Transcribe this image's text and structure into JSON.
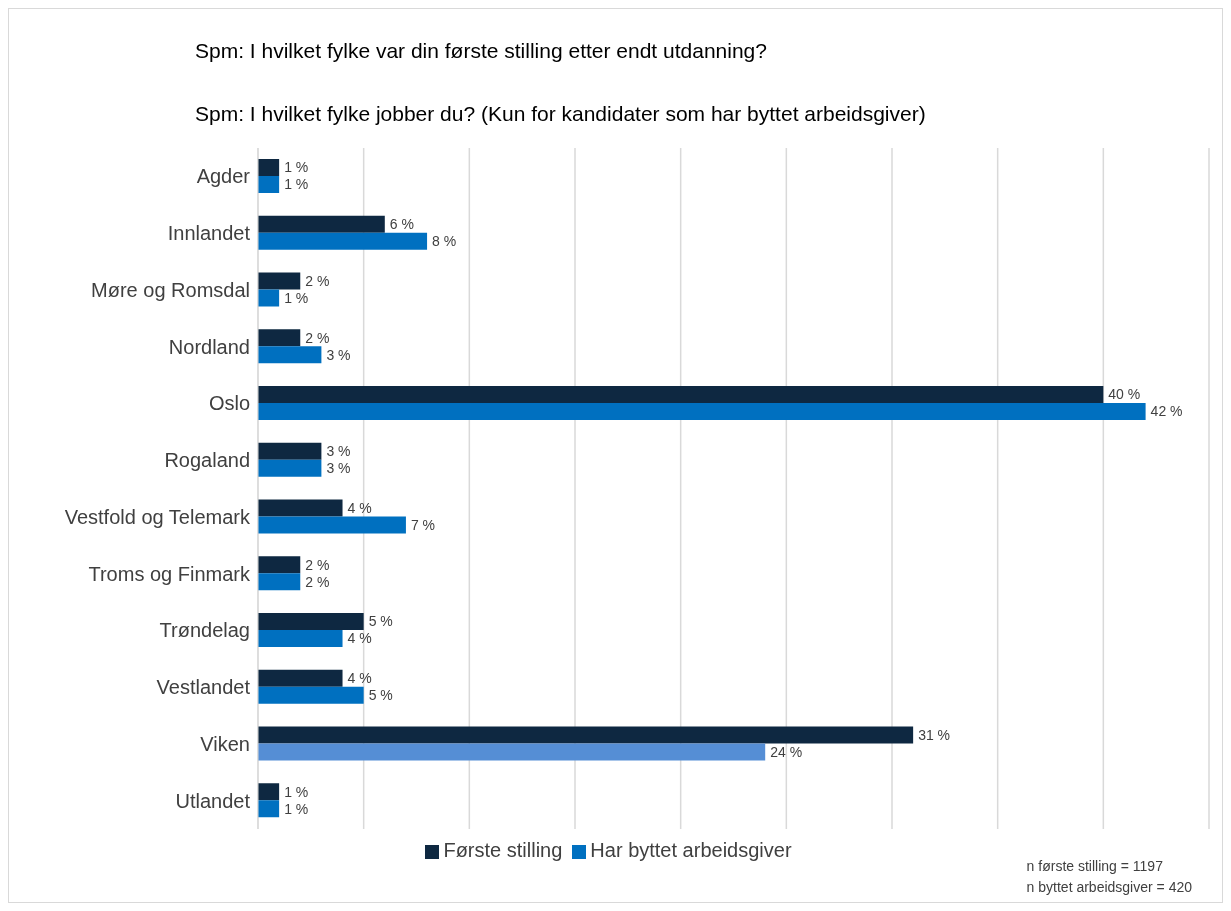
{
  "chart_data": {
    "type": "bar",
    "orientation": "horizontal",
    "title": "Spm: I hvilket fylke var din første stilling etter endt utdanning?",
    "subtitle": "Spm: I hvilket fylke jobber du? (Kun for kandidater som har byttet arbeidsgiver)",
    "categories": [
      "Agder",
      "Innlandet",
      "Møre og Romsdal",
      "Nordland",
      "Oslo",
      "Rogaland",
      "Vestfold og Telemark",
      "Troms og Finmark",
      "Trøndelag",
      "Vestlandet",
      "Viken",
      "Utlandet"
    ],
    "series": [
      {
        "name": "Første stilling",
        "color": "#0e2841",
        "values": [
          1,
          6,
          2,
          2,
          40,
          3,
          4,
          2,
          5,
          4,
          31,
          1
        ],
        "value_labels": [
          "1 %",
          "6 %",
          "2 %",
          "2 %",
          "40 %",
          "3 %",
          "4 %",
          "2 %",
          "5 %",
          "4 %",
          "31 %",
          "1 %"
        ]
      },
      {
        "name": "Har byttet arbeidsgiver",
        "color": "#0070c0",
        "colors": [
          "#0070c0",
          "#0070c0",
          "#0070c0",
          "#0070c0",
          "#0070c0",
          "#0070c0",
          "#0070c0",
          "#0070c0",
          "#0070c0",
          "#0070c0",
          "#558ed5",
          "#0070c0"
        ],
        "values": [
          1,
          8,
          1,
          3,
          42,
          3,
          7,
          2,
          4,
          5,
          24,
          1
        ],
        "value_labels": [
          "1 %",
          "8 %",
          "1 %",
          "3 %",
          "42 %",
          "3 %",
          "7 %",
          "2 %",
          "4 %",
          "5 %",
          "24 %",
          "1 %"
        ]
      }
    ],
    "xlim": [
      0,
      45
    ],
    "xticks": [
      {
        "value": 0,
        "label": null
      },
      {
        "value": 5,
        "label": null
      },
      {
        "value": 10,
        "label": null
      },
      {
        "value": 15,
        "label": null
      },
      {
        "value": 20,
        "label": null
      },
      {
        "value": 25,
        "label": null
      },
      {
        "value": 30,
        "label": null
      },
      {
        "value": 35,
        "label": null
      },
      {
        "value": 40,
        "label": null
      },
      {
        "value": 45,
        "label": null
      }
    ],
    "tick_labels": "y",
    "grid": "x",
    "legend": "bottom",
    "annotations": [
      "n første stilling = 1197",
      "n byttet arbeidsgiver = 420"
    ]
  }
}
